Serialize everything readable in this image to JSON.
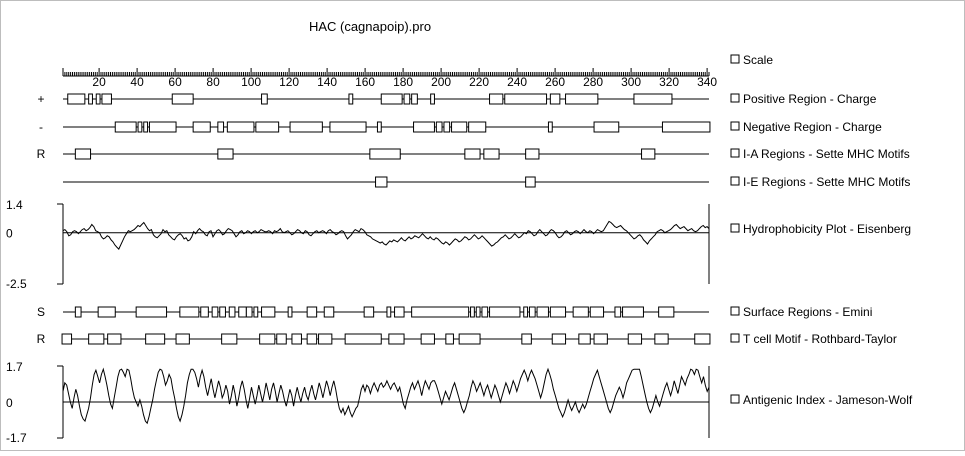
{
  "title": "HAC (cagnapoip).pro",
  "chart_data": {
    "type": "protein-track-plot",
    "x_range": [
      1,
      341
    ],
    "x_ticks": [
      20,
      40,
      60,
      80,
      100,
      120,
      140,
      160,
      180,
      200,
      220,
      240,
      260,
      280,
      300,
      320,
      340
    ],
    "legend": [
      "Scale",
      "Positive Region - Charge",
      "Negative Region - Charge",
      "I-A Regions - Sette MHC Motifs",
      "I-E Regions - Sette MHC Motifs",
      "Hydrophobicity Plot - Eisenberg",
      "Surface Regions - Emini",
      "T cell Motif  - Rothbard-Taylor",
      "Antigenic Index - Jameson-Wolf"
    ],
    "tracks": [
      {
        "label": "+",
        "name": "Positive Region - Charge",
        "regions": [
          [
            4,
            12
          ],
          [
            15,
            16
          ],
          [
            19,
            20
          ],
          [
            22,
            26
          ],
          [
            59,
            69
          ],
          [
            106,
            108
          ],
          [
            152,
            153
          ],
          [
            169,
            179
          ],
          [
            181,
            183
          ],
          [
            185,
            187
          ],
          [
            195,
            196
          ],
          [
            226,
            232
          ],
          [
            234,
            255
          ],
          [
            258,
            262
          ],
          [
            266,
            282
          ],
          [
            302,
            321
          ]
        ]
      },
      {
        "label": "-",
        "name": "Negative Region - Charge",
        "regions": [
          [
            29,
            39
          ],
          [
            41,
            42
          ],
          [
            44,
            45
          ],
          [
            47,
            60
          ],
          [
            70,
            78
          ],
          [
            83,
            85
          ],
          [
            88,
            101
          ],
          [
            103,
            114
          ],
          [
            121,
            137
          ],
          [
            142,
            160
          ],
          [
            167,
            168
          ],
          [
            186,
            196
          ],
          [
            198,
            200
          ],
          [
            202,
            204
          ],
          [
            206,
            213
          ],
          [
            215,
            223
          ],
          [
            257,
            258
          ],
          [
            281,
            293
          ],
          [
            317,
            341
          ]
        ]
      },
      {
        "label": "R",
        "name": "I-A Regions - Sette MHC Motifs",
        "regions": [
          [
            8,
            15
          ],
          [
            83,
            90
          ],
          [
            163,
            178
          ],
          [
            213,
            220
          ],
          [
            223,
            230
          ],
          [
            245,
            251
          ],
          [
            306,
            312
          ]
        ]
      },
      {
        "label": "",
        "name": "I-E Regions - Sette MHC Motifs",
        "regions": [
          [
            166,
            171
          ],
          [
            245,
            249
          ]
        ]
      },
      {
        "label": "S",
        "name": "Surface Regions - Emini",
        "regions": [
          [
            8,
            10
          ],
          [
            20,
            28
          ],
          [
            40,
            55
          ],
          [
            63,
            72
          ],
          [
            74,
            77
          ],
          [
            80,
            82
          ],
          [
            84,
            86
          ],
          [
            89,
            91
          ],
          [
            94,
            97
          ],
          [
            98,
            100
          ],
          [
            102,
            103
          ],
          [
            106,
            112
          ],
          [
            120,
            121
          ],
          [
            130,
            134
          ],
          [
            139,
            143
          ],
          [
            160,
            164
          ],
          [
            172,
            173
          ],
          [
            176,
            180
          ],
          [
            185,
            214
          ],
          [
            216,
            217
          ],
          [
            219,
            220
          ],
          [
            222,
            224
          ],
          [
            226,
            241
          ],
          [
            244,
            245
          ],
          [
            247,
            249
          ],
          [
            251,
            256
          ],
          [
            258,
            265
          ],
          [
            270,
            277
          ],
          [
            279,
            285
          ],
          [
            292,
            294
          ],
          [
            296,
            306
          ],
          [
            315,
            322
          ]
        ]
      },
      {
        "label": "R",
        "name": "T cell Motif  - Rothbard-Taylor",
        "regions": [
          [
            1,
            5
          ],
          [
            15,
            22
          ],
          [
            25,
            31
          ],
          [
            45,
            54
          ],
          [
            61,
            67
          ],
          [
            85,
            92
          ],
          [
            105,
            112
          ],
          [
            114,
            118
          ],
          [
            122,
            126
          ],
          [
            130,
            134
          ],
          [
            136,
            142
          ],
          [
            150,
            168
          ],
          [
            173,
            180
          ],
          [
            190,
            196
          ],
          [
            203,
            206
          ],
          [
            210,
            220
          ],
          [
            243,
            247
          ],
          [
            259,
            265
          ],
          [
            273,
            278
          ],
          [
            281,
            287
          ],
          [
            299,
            305
          ],
          [
            313,
            319
          ],
          [
            334,
            341
          ]
        ]
      }
    ],
    "hydrophobicity": {
      "name": "Hydrophobicity Plot - Eisenberg",
      "ylim": [
        -2.5,
        1.4
      ],
      "tick_labels": [
        "1.4",
        "0",
        "-2.5"
      ],
      "values": [
        0.1,
        0.15,
        0.05,
        -0.15,
        -0.1,
        0.05,
        0.1,
        0.05,
        -0.05,
        0.05,
        0.15,
        0.2,
        0.1,
        0.15,
        0.25,
        0.4,
        0.3,
        0.1,
        0.05,
        0.0,
        -0.2,
        -0.3,
        -0.25,
        -0.15,
        -0.2,
        -0.35,
        -0.45,
        -0.6,
        -0.7,
        -0.8,
        -0.6,
        -0.4,
        -0.2,
        -0.05,
        0.1,
        0.05,
        0.1,
        0.15,
        0.25,
        0.35,
        0.3,
        0.4,
        0.5,
        0.35,
        0.2,
        0.1,
        0.15,
        -0.1,
        -0.2,
        -0.25,
        -0.15,
        -0.05,
        0.15,
        0.05,
        0.1,
        -0.1,
        -0.2,
        -0.3,
        -0.35,
        -0.2,
        -0.1,
        -0.05,
        -0.15,
        -0.3,
        -0.25,
        -0.4,
        -0.35,
        -0.2,
        0.05,
        -0.05,
        0.1,
        0.2,
        0.1,
        0.05,
        -0.1,
        -0.15,
        0.05,
        0.1,
        -0.2,
        -0.05,
        0.1,
        0.15,
        0.05,
        -0.1,
        -0.05,
        0.1,
        0.2,
        0.15,
        0.1,
        -0.05,
        -0.2,
        -0.1,
        0.05,
        0.1,
        -0.05,
        0.0,
        0.1,
        0.05,
        -0.05,
        0.05,
        0.1,
        0.0,
        0.05,
        0.15,
        0.1,
        0.05,
        0.05,
        0.1,
        0.05,
        -0.05,
        0.1,
        0.05,
        0.1,
        0.2,
        0.05,
        0.0,
        0.05,
        0.1,
        0.0,
        -0.1,
        -0.05,
        0.05,
        0.15,
        0.1,
        0.0,
        -0.05,
        0.1,
        0.05,
        -0.1,
        -0.15,
        -0.05,
        0.05,
        0.1,
        0.0,
        0.05,
        0.1,
        0.05,
        -0.05,
        0.1,
        0.15,
        0.05,
        0.0,
        -0.1,
        -0.05,
        0.05,
        0.1,
        0.05,
        -0.15,
        -0.3,
        -0.2,
        -0.1,
        0.05,
        0.15,
        0.1,
        0.05,
        0.2,
        0.15,
        0.05,
        -0.1,
        -0.15,
        -0.2,
        -0.3,
        -0.35,
        -0.4,
        -0.45,
        -0.5,
        -0.45,
        -0.55,
        -0.6,
        -0.5,
        -0.4,
        -0.45,
        -0.35,
        -0.4,
        -0.45,
        -0.35,
        -0.25,
        -0.35,
        -0.4,
        -0.3,
        -0.2,
        -0.3,
        -0.25,
        -0.15,
        -0.2,
        -0.25,
        -0.15,
        -0.05,
        -0.15,
        -0.25,
        -0.3,
        -0.2,
        -0.3,
        -0.35,
        -0.25,
        -0.3,
        -0.4,
        -0.5,
        -0.55,
        -0.45,
        -0.5,
        -0.6,
        -0.5,
        -0.4,
        -0.3,
        -0.35,
        -0.45,
        -0.4,
        -0.3,
        -0.2,
        -0.25,
        -0.35,
        -0.3,
        -0.2,
        -0.1,
        -0.2,
        -0.3,
        -0.25,
        -0.15,
        -0.25,
        -0.35,
        -0.45,
        -0.55,
        -0.65,
        -0.6,
        -0.5,
        -0.45,
        -0.35,
        -0.25,
        -0.2,
        -0.1,
        -0.2,
        -0.3,
        -0.25,
        -0.15,
        -0.05,
        -0.15,
        -0.25,
        -0.2,
        -0.1,
        0.0,
        -0.05,
        0.1,
        0.05,
        -0.05,
        -0.15,
        -0.1,
        0.05,
        0.15,
        0.05,
        -0.05,
        -0.15,
        -0.1,
        0.05,
        0.15,
        0.1,
        0.0,
        -0.15,
        -0.25,
        -0.2,
        -0.1,
        0.05,
        0.1,
        0.0,
        -0.1,
        -0.05,
        0.05,
        0.1,
        0.05,
        -0.05,
        0.05,
        0.15,
        0.05,
        0.0,
        0.1,
        0.05,
        -0.05,
        0.05,
        0.15,
        0.1,
        0.05,
        0.1,
        0.25,
        0.4,
        0.55,
        0.5,
        0.4,
        0.3,
        0.25,
        0.3,
        0.35,
        0.25,
        0.15,
        0.1,
        0.0,
        -0.1,
        -0.2,
        -0.3,
        -0.25,
        -0.15,
        -0.1,
        -0.2,
        -0.35,
        -0.45,
        -0.55,
        -0.4,
        -0.3,
        -0.2,
        -0.1,
        0.05,
        0.1,
        0.15,
        0.1,
        0.0,
        0.05,
        0.1,
        0.15,
        0.25,
        0.35,
        0.4,
        0.3,
        0.2,
        0.25,
        0.3,
        0.2,
        0.1,
        0.15,
        0.2,
        0.1,
        0.05,
        0.1,
        0.2,
        0.3,
        0.35,
        0.25,
        0.3,
        0.2
      ]
    },
    "antigenic_index": {
      "name": "Antigenic Index - Jameson-Wolf",
      "ylim": [
        -1.7,
        1.7
      ],
      "tick_labels": [
        "1.7",
        "0",
        "-1.7"
      ],
      "values": [
        0.5,
        0.9,
        0.8,
        0.4,
        0.0,
        -0.3,
        0.2,
        0.6,
        0.3,
        -0.2,
        -0.6,
        -0.8,
        -0.9,
        -0.6,
        -0.3,
        0.2,
        0.8,
        1.3,
        1.5,
        1.2,
        0.9,
        1.3,
        1.55,
        1.2,
        0.8,
        0.3,
        -0.1,
        -0.3,
        0.2,
        0.7,
        1.2,
        1.5,
        1.55,
        1.4,
        1.2,
        1.55,
        1.5,
        1.1,
        0.6,
        0.2,
        0.0,
        -0.2,
        0.1,
        -0.2,
        -0.6,
        -0.9,
        -1.0,
        -0.7,
        -0.3,
        0.1,
        0.6,
        1.0,
        1.4,
        1.55,
        1.5,
        1.2,
        0.8,
        1.0,
        1.3,
        1.1,
        0.6,
        0.2,
        -0.3,
        -0.7,
        -0.9,
        -0.6,
        -0.2,
        0.3,
        0.9,
        1.3,
        1.55,
        1.55,
        1.4,
        1.1,
        0.7,
        1.2,
        1.5,
        1.2,
        0.7,
        0.3,
        0.7,
        1.1,
        0.6,
        0.2,
        0.6,
        1.0,
        0.7,
        0.2,
        0.4,
        0.8,
        0.5,
        -0.1,
        0.3,
        0.8,
        0.4,
        -0.2,
        0.2,
        0.7,
        1.0,
        0.6,
        0.1,
        -0.3,
        0.2,
        0.7,
        0.3,
        -0.1,
        0.3,
        0.8,
        0.4,
        0.0,
        0.4,
        0.9,
        0.5,
        0.1,
        0.6,
        0.9,
        0.5,
        0.0,
        0.4,
        0.8,
        0.5,
        0.1,
        -0.2,
        0.2,
        0.6,
        0.3,
        -0.2,
        0.3,
        0.7,
        0.3,
        0.0,
        0.4,
        0.7,
        0.3,
        0.1,
        0.5,
        0.8,
        0.4,
        0.1,
        0.5,
        0.9,
        0.6,
        0.2,
        0.6,
        1.0,
        0.7,
        0.3,
        0.7,
        1.0,
        0.6,
        0.1,
        -0.3,
        -0.5,
        -0.3,
        -0.6,
        -0.4,
        -0.2,
        -0.5,
        -0.7,
        -0.5,
        -0.3,
        -0.2,
        0.2,
        0.6,
        0.8,
        0.5,
        0.8,
        0.7,
        0.4,
        0.7,
        0.9,
        0.7,
        0.5,
        0.8,
        0.9,
        0.7,
        0.8,
        1.0,
        0.8,
        0.6,
        0.8,
        0.9,
        0.7,
        0.5,
        0.7,
        0.3,
        -0.1,
        -0.3,
        0.1,
        0.4,
        0.7,
        0.9,
        0.6,
        0.8,
        1.0,
        0.7,
        0.3,
        0.7,
        1.0,
        0.8,
        0.6,
        0.9,
        1.0,
        1.0,
        0.8,
        0.5,
        0.2,
        -0.1,
        0.2,
        0.5,
        0.3,
        0.1,
        0.4,
        0.7,
        0.9,
        0.6,
        0.3,
        0.0,
        -0.3,
        -0.5,
        -0.3,
        0.0,
        0.3,
        0.7,
        1.0,
        0.8,
        0.5,
        0.7,
        0.9,
        0.6,
        0.3,
        0.6,
        0.8,
        0.5,
        0.2,
        0.5,
        0.8,
        0.6,
        0.3,
        0.0,
        0.3,
        0.6,
        0.9,
        0.7,
        0.4,
        0.7,
        1.0,
        0.8,
        0.5,
        0.8,
        1.1,
        1.3,
        1.5,
        1.3,
        1.0,
        1.3,
        1.5,
        1.3,
        1.1,
        0.8,
        0.5,
        0.2,
        0.5,
        0.9,
        1.3,
        1.55,
        1.3,
        1.0,
        0.6,
        0.3,
        0.0,
        -0.3,
        -0.5,
        -0.7,
        -0.5,
        -0.2,
        0.1,
        -0.2,
        -0.4,
        -0.2,
        0.0,
        -0.3,
        -0.5,
        -0.3,
        -0.1,
        -0.3,
        -0.1,
        0.2,
        0.5,
        0.8,
        1.1,
        1.3,
        1.5,
        1.2,
        0.9,
        0.6,
        0.3,
        0.0,
        -0.3,
        -0.5,
        -0.3,
        0.0,
        0.3,
        0.5,
        0.7,
        0.5,
        0.2,
        0.5,
        0.9,
        1.1,
        1.3,
        1.5,
        1.55,
        1.55,
        1.55,
        1.55,
        1.2,
        0.8,
        0.4,
        0.0,
        -0.3,
        -0.5,
        -0.3,
        0.0,
        0.3,
        0.0,
        -0.2,
        0.1,
        0.4,
        0.7,
        0.9,
        0.6,
        0.3,
        0.6,
        1.0,
        0.7,
        0.4,
        0.8,
        1.2,
        1.0,
        0.8,
        1.1,
        1.3,
        1.55,
        1.5,
        1.3,
        1.55,
        1.5,
        1.2,
        0.9,
        1.2,
        0.8,
        0.5,
        0.7
      ]
    }
  }
}
